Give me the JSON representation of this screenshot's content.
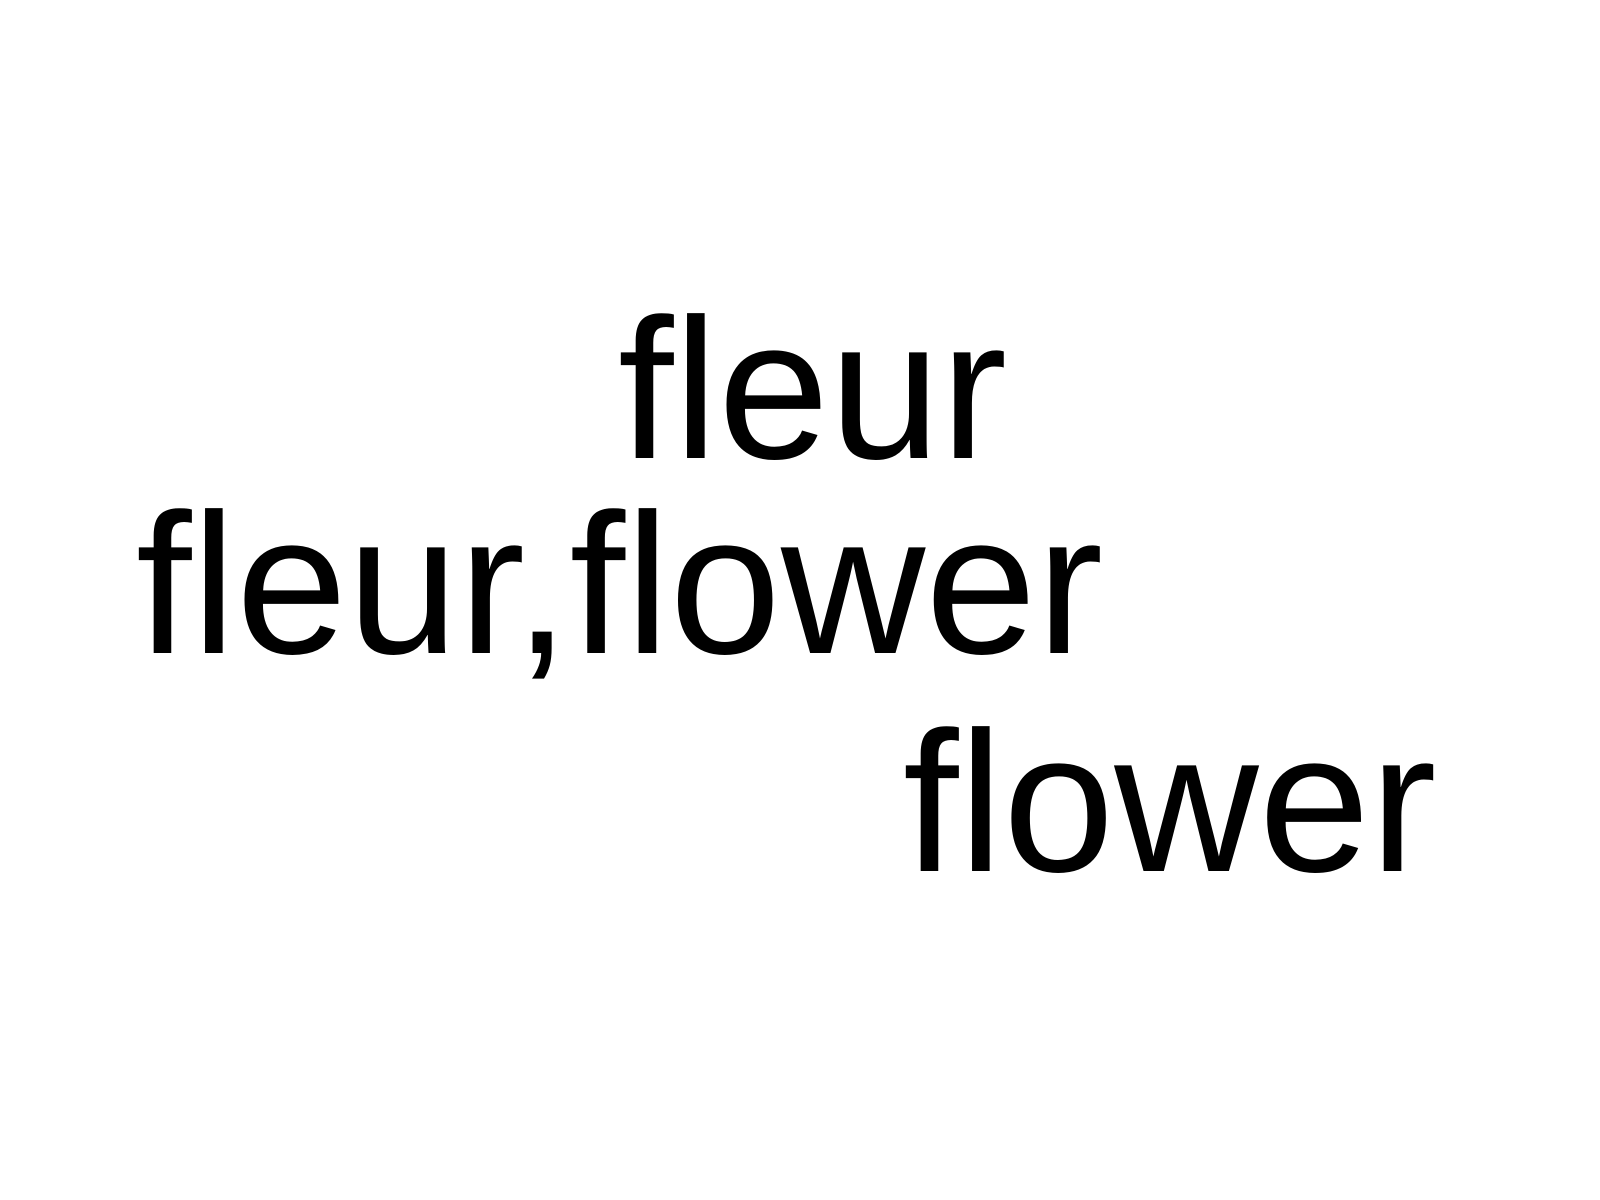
{
  "text": {
    "top": "fleur",
    "middle": "fleur,flower",
    "bottom": "flower"
  },
  "colors": {
    "background": "#ffffff",
    "text": "#000000"
  }
}
